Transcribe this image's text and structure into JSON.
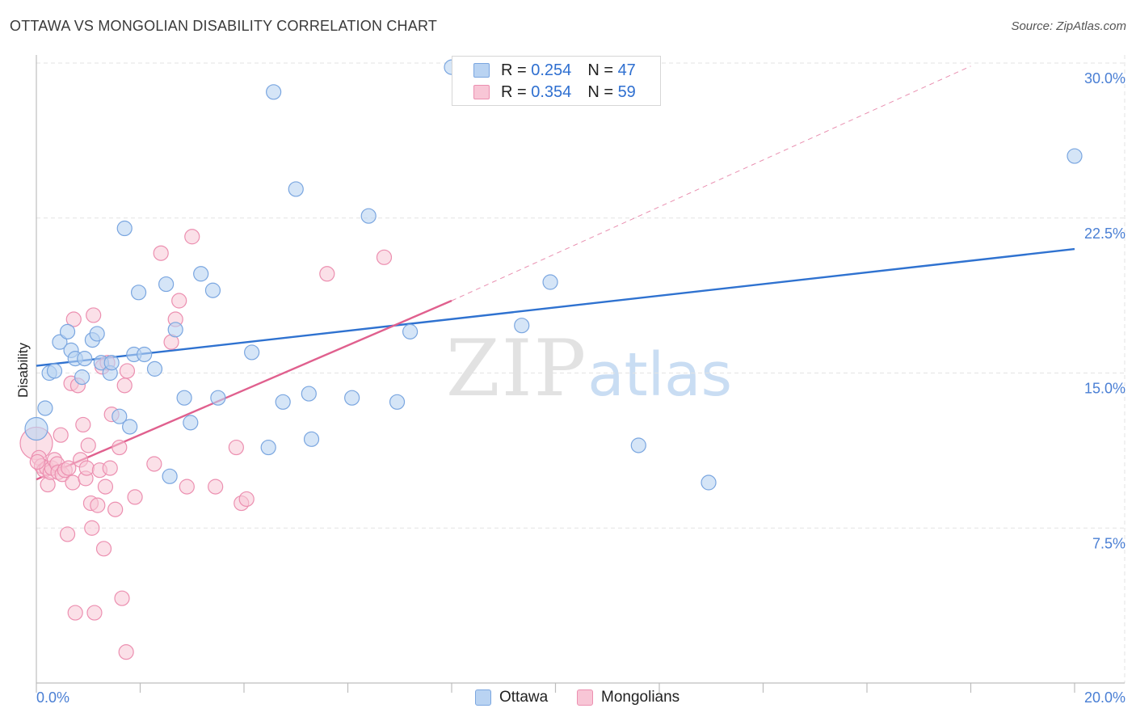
{
  "header": {
    "title": "OTTAWA VS MONGOLIAN DISABILITY CORRELATION CHART",
    "source": "Source: ZipAtlas.com"
  },
  "watermark": {
    "zip": "ZIP",
    "atlas": "atlas"
  },
  "legend_top": {
    "rows": [
      {
        "r_label": "R = ",
        "r_value": "0.254",
        "n_label": "N = ",
        "n_value": "47"
      },
      {
        "r_label": "R = ",
        "r_value": "0.354",
        "n_label": "N = ",
        "n_value": "59"
      }
    ]
  },
  "legend_bottom": {
    "items": [
      "Ottawa",
      "Mongolians"
    ]
  },
  "colors": {
    "ottawa_fill": "#b9d3f2",
    "ottawa_stroke": "#7aa6e0",
    "ottawa_line": "#2f72d0",
    "mongolians_fill": "#f8c6d6",
    "mongolians_stroke": "#ec8fb0",
    "mongolians_line": "#e0608e",
    "grid": "#e3e3e3",
    "tick_label": "#4a7fd4"
  },
  "chart_data": {
    "type": "scatter",
    "title": "OTTAWA VS MONGOLIAN DISABILITY CORRELATION CHART",
    "xlabel": "",
    "ylabel": "Disability",
    "xlim": [
      0,
      20
    ],
    "ylim": [
      0,
      30
    ],
    "x_ticks": [
      "0.0%",
      "20.0%"
    ],
    "y_ticks": [
      "7.5%",
      "15.0%",
      "22.5%",
      "30.0%"
    ],
    "y_tick_values": [
      7.5,
      15.0,
      22.5,
      30.0
    ],
    "grid": true,
    "series": [
      {
        "name": "Ottawa",
        "r": 0.254,
        "n": 47,
        "trend": {
          "x0": 0.0,
          "y0": 15.35,
          "x1": 20.0,
          "y1": 21.0
        },
        "points": [
          [
            0.0,
            12.3
          ],
          [
            0.17,
            13.3
          ],
          [
            0.25,
            15.0
          ],
          [
            0.35,
            15.1
          ],
          [
            0.45,
            16.5
          ],
          [
            0.6,
            17.0
          ],
          [
            0.67,
            16.1
          ],
          [
            0.75,
            15.7
          ],
          [
            0.88,
            14.8
          ],
          [
            0.93,
            15.7
          ],
          [
            1.08,
            16.6
          ],
          [
            1.17,
            16.9
          ],
          [
            1.25,
            15.5
          ],
          [
            1.42,
            15.0
          ],
          [
            1.45,
            15.5
          ],
          [
            1.6,
            12.9
          ],
          [
            1.7,
            22.0
          ],
          [
            1.8,
            12.4
          ],
          [
            1.88,
            15.9
          ],
          [
            1.97,
            18.9
          ],
          [
            2.08,
            15.9
          ],
          [
            2.28,
            15.2
          ],
          [
            2.5,
            19.3
          ],
          [
            2.57,
            10.0
          ],
          [
            2.68,
            17.1
          ],
          [
            2.85,
            13.8
          ],
          [
            2.97,
            12.6
          ],
          [
            3.17,
            19.8
          ],
          [
            3.4,
            19.0
          ],
          [
            3.5,
            13.8
          ],
          [
            4.15,
            16.0
          ],
          [
            4.57,
            28.6
          ],
          [
            4.47,
            11.4
          ],
          [
            4.75,
            13.6
          ],
          [
            5.0,
            23.9
          ],
          [
            5.25,
            14.0
          ],
          [
            5.3,
            11.8
          ],
          [
            6.08,
            13.8
          ],
          [
            6.4,
            22.6
          ],
          [
            6.95,
            13.6
          ],
          [
            7.2,
            17.0
          ],
          [
            8.0,
            29.8
          ],
          [
            9.35,
            17.3
          ],
          [
            9.9,
            19.4
          ],
          [
            11.6,
            11.5
          ],
          [
            12.95,
            9.7
          ],
          [
            20.0,
            25.5
          ]
        ]
      },
      {
        "name": "Mongolians",
        "r": 0.354,
        "n": 59,
        "trend": {
          "x0": 0.0,
          "y0": 9.85,
          "x1": 8.0,
          "y1": 18.5,
          "dash_x1": 18.0,
          "dash_y1": 29.85
        },
        "points": [
          [
            0.0,
            11.6
          ],
          [
            0.05,
            10.9
          ],
          [
            0.1,
            10.5
          ],
          [
            0.15,
            10.3
          ],
          [
            0.2,
            10.4
          ],
          [
            0.22,
            9.6
          ],
          [
            0.27,
            10.2
          ],
          [
            0.3,
            10.4
          ],
          [
            0.35,
            10.8
          ],
          [
            0.4,
            10.6
          ],
          [
            0.42,
            10.2
          ],
          [
            0.47,
            12.0
          ],
          [
            0.5,
            10.1
          ],
          [
            0.55,
            10.3
          ],
          [
            0.62,
            10.4
          ],
          [
            0.6,
            7.2
          ],
          [
            0.67,
            14.5
          ],
          [
            0.7,
            9.7
          ],
          [
            0.72,
            17.6
          ],
          [
            0.75,
            3.4
          ],
          [
            0.8,
            14.4
          ],
          [
            0.85,
            10.8
          ],
          [
            0.9,
            12.5
          ],
          [
            0.95,
            9.9
          ],
          [
            0.97,
            10.4
          ],
          [
            1.0,
            11.5
          ],
          [
            1.05,
            8.7
          ],
          [
            1.07,
            7.5
          ],
          [
            1.1,
            17.8
          ],
          [
            1.12,
            3.4
          ],
          [
            1.18,
            8.6
          ],
          [
            1.22,
            10.3
          ],
          [
            1.27,
            15.3
          ],
          [
            1.3,
            6.5
          ],
          [
            1.33,
            9.5
          ],
          [
            1.37,
            15.5
          ],
          [
            1.42,
            10.4
          ],
          [
            1.45,
            13.0
          ],
          [
            1.52,
            8.4
          ],
          [
            1.6,
            11.4
          ],
          [
            1.65,
            4.1
          ],
          [
            1.7,
            14.4
          ],
          [
            1.73,
            1.5
          ],
          [
            1.75,
            15.1
          ],
          [
            1.9,
            9.0
          ],
          [
            2.27,
            10.6
          ],
          [
            2.4,
            20.8
          ],
          [
            2.6,
            16.5
          ],
          [
            2.68,
            17.6
          ],
          [
            2.75,
            18.5
          ],
          [
            2.9,
            9.5
          ],
          [
            3.0,
            21.6
          ],
          [
            3.45,
            9.5
          ],
          [
            3.85,
            11.4
          ],
          [
            3.95,
            8.7
          ],
          [
            4.05,
            8.9
          ],
          [
            5.6,
            19.8
          ],
          [
            6.7,
            20.6
          ],
          [
            0.02,
            10.7
          ]
        ]
      }
    ]
  }
}
